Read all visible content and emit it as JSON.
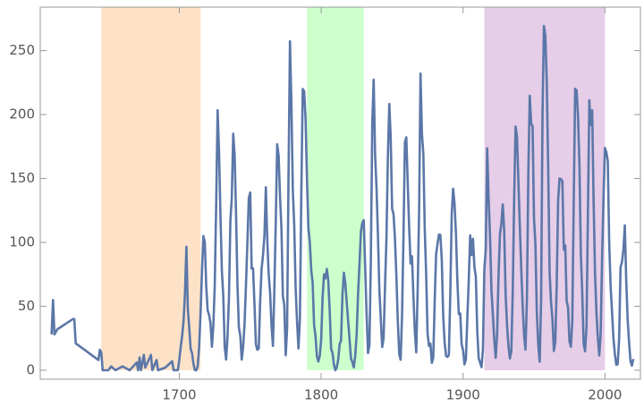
{
  "chart_data": {
    "type": "line",
    "xlim": [
      1602,
      2025
    ],
    "ylim": [
      -7,
      284
    ],
    "xticks": [
      1700,
      1800,
      1900,
      2000
    ],
    "yticks": [
      0,
      50,
      100,
      150,
      200,
      250
    ],
    "regions": [
      {
        "x": [
          1645,
          1715
        ],
        "color": "#fde2c8"
      },
      {
        "x": [
          1790,
          1830
        ],
        "color": "#ccffcc"
      },
      {
        "x": [
          1915,
          2000
        ],
        "color": "#e6cde8"
      }
    ],
    "x": [
      1610,
      1611,
      1612,
      1613,
      1614,
      1625,
      1626,
      1627,
      1643,
      1644,
      1645,
      1646,
      1650,
      1652,
      1655,
      1660,
      1665,
      1670,
      1671,
      1672,
      1673,
      1675,
      1676,
      1680,
      1681,
      1684,
      1685,
      1690,
      1695,
      1696,
      1699,
      1700,
      1701,
      1702,
      1703,
      1704,
      1705,
      1706,
      1707,
      1708,
      1709,
      1710,
      1711,
      1712,
      1713,
      1714,
      1715,
      1716,
      1717,
      1718,
      1719,
      1720,
      1721,
      1722,
      1723,
      1724,
      1725,
      1726,
      1727,
      1728,
      1729,
      1730,
      1731,
      1732,
      1733,
      1734,
      1735,
      1736,
      1737,
      1738,
      1739,
      1740,
      1741,
      1742,
      1743,
      1744,
      1745,
      1746,
      1747,
      1748,
      1749,
      1750,
      1751,
      1752,
      1753,
      1754,
      1755,
      1756,
      1757,
      1758,
      1759,
      1760,
      1761,
      1762,
      1763,
      1764,
      1765,
      1766,
      1767,
      1768,
      1769,
      1770,
      1771,
      1772,
      1773,
      1774,
      1775,
      1776,
      1777,
      1778,
      1779,
      1780,
      1781,
      1782,
      1783,
      1784,
      1785,
      1786,
      1787,
      1788,
      1789,
      1790,
      1791,
      1792,
      1793,
      1794,
      1795,
      1796,
      1797,
      1798,
      1799,
      1800,
      1801,
      1802,
      1803,
      1804,
      1805,
      1806,
      1807,
      1808,
      1809,
      1810,
      1811,
      1812,
      1813,
      1814,
      1815,
      1816,
      1817,
      1818,
      1819,
      1820,
      1821,
      1822,
      1823,
      1824,
      1825,
      1826,
      1827,
      1828,
      1829,
      1830,
      1831,
      1832,
      1833,
      1834,
      1835,
      1836,
      1837,
      1838,
      1839,
      1840,
      1841,
      1842,
      1843,
      1844,
      1845,
      1846,
      1847,
      1848,
      1849,
      1850,
      1851,
      1852,
      1853,
      1854,
      1855,
      1856,
      1857,
      1858,
      1859,
      1860,
      1861,
      1862,
      1863,
      1864,
      1865,
      1866,
      1867,
      1868,
      1869,
      1870,
      1871,
      1872,
      1873,
      1874,
      1875,
      1876,
      1877,
      1878,
      1879,
      1880,
      1881,
      1882,
      1883,
      1884,
      1885,
      1886,
      1887,
      1888,
      1889,
      1890,
      1891,
      1892,
      1893,
      1894,
      1895,
      1896,
      1897,
      1898,
      1899,
      1900,
      1901,
      1902,
      1903,
      1904,
      1905,
      1906,
      1907,
      1908,
      1909,
      1910,
      1911,
      1912,
      1913,
      1914,
      1915,
      1916,
      1917,
      1918,
      1919,
      1920,
      1921,
      1922,
      1923,
      1924,
      1925,
      1926,
      1927,
      1928,
      1929,
      1930,
      1931,
      1932,
      1933,
      1934,
      1935,
      1936,
      1937,
      1938,
      1939,
      1940,
      1941,
      1942,
      1943,
      1944,
      1945,
      1946,
      1947,
      1948,
      1949,
      1950,
      1951,
      1952,
      1953,
      1954,
      1955,
      1956,
      1957,
      1958,
      1959,
      1960,
      1961,
      1962,
      1963,
      1964,
      1965,
      1966,
      1967,
      1968,
      1969,
      1970,
      1971,
      1972,
      1973,
      1974,
      1975,
      1976,
      1977,
      1978,
      1979,
      1980,
      1981,
      1982,
      1983,
      1984,
      1985,
      1986,
      1987,
      1988,
      1989,
      1990,
      1991,
      1992,
      1993,
      1994,
      1995,
      1996,
      1997,
      1998,
      1999,
      2000,
      2001,
      2002,
      2003,
      2004,
      2005,
      2006,
      2007,
      2008,
      2009,
      2010,
      2011,
      2012,
      2013,
      2014,
      2015,
      2016,
      2017,
      2018,
      2019,
      2020
    ],
    "series": [
      {
        "color": "#5b77a8",
        "values": [
          28,
          55,
          28,
          30,
          32,
          40,
          40,
          21,
          8,
          16,
          14,
          0,
          0,
          3,
          0,
          3,
          0,
          6,
          0,
          10,
          0,
          12,
          2,
          12,
          0,
          8,
          0,
          2,
          7,
          0,
          0,
          8.3,
          18.3,
          26.7,
          38.3,
          60.0,
          96.7,
          48.3,
          33.3,
          16.7,
          13.3,
          5.0,
          0.0,
          0.0,
          3.3,
          18.3,
          45.0,
          78.3,
          105.0,
          100.0,
          65.0,
          46.7,
          43.3,
          36.7,
          18.3,
          35.0,
          66.7,
          130.0,
          203.3,
          171.7,
          121.7,
          78.3,
          58.3,
          18.3,
          8.3,
          26.7,
          56.7,
          116.7,
          135.0,
          185.0,
          168.3,
          121.7,
          66.7,
          33.3,
          26.7,
          8.3,
          18.3,
          36.7,
          66.7,
          100.0,
          134.8,
          139.0,
          79.5,
          79.7,
          51.2,
          20.3,
          16.0,
          17.0,
          54.0,
          79.3,
          90.0,
          104.8,
          143.2,
          102.0,
          75.2,
          60.7,
          34.8,
          19.0,
          63.0,
          116.3,
          176.8,
          168.0,
          136.0,
          110.8,
          58.0,
          51.0,
          11.7,
          33.0,
          154.2,
          257.3,
          209.8,
          141.3,
          113.5,
          64.2,
          38.0,
          17.0,
          40.2,
          138.2,
          220.0,
          218.2,
          196.8,
          149.8,
          111.0,
          100.0,
          78.2,
          68.3,
          35.5,
          26.7,
          10.7,
          6.8,
          11.3,
          24.2,
          56.7,
          75.0,
          71.8,
          79.2,
          70.3,
          46.8,
          16.8,
          13.5,
          4.2,
          0.0,
          2.3,
          8.3,
          20.3,
          23.2,
          59.0,
          76.3,
          68.3,
          52.9,
          38.5,
          24.2,
          9.2,
          6.3,
          2.2,
          11.4,
          28.2,
          59.9,
          83.0,
          108.5,
          115.2,
          117.4,
          80.8,
          44.3,
          13.4,
          19.5,
          85.8,
          192.7,
          227.3,
          168.7,
          143.0,
          105.5,
          63.3,
          40.3,
          18.1,
          25.1,
          65.8,
          102.7,
          166.3,
          208.3,
          182.5,
          126.3,
          122.0,
          102.7,
          74.1,
          39.0,
          12.7,
          8.2,
          43.4,
          104.4,
          178.3,
          182.2,
          146.6,
          112.1,
          83.5,
          89.2,
          57.8,
          30.7,
          13.9,
          62.8,
          123.6,
          232.0,
          185.3,
          169.2,
          110.1,
          74.5,
          28.3,
          18.9,
          20.7,
          5.7,
          10.0,
          53.7,
          90.5,
          99.0,
          106.1,
          105.8,
          86.3,
          42.4,
          21.8,
          11.2,
          10.4,
          11.8,
          59.5,
          121.7,
          142.0,
          130.0,
          106.6,
          69.4,
          43.8,
          44.4,
          20.2,
          15.7,
          4.6,
          8.5,
          40.8,
          70.1,
          105.5,
          90.1,
          102.8,
          80.9,
          73.2,
          30.9,
          9.5,
          6.0,
          2.4,
          16.1,
          79.0,
          95.0,
          173.6,
          134.6,
          105.7,
          62.7,
          43.5,
          23.7,
          9.7,
          27.9,
          74.0,
          106.5,
          114.7,
          129.7,
          108.2,
          59.4,
          35.1,
          18.6,
          9.2,
          14.6,
          60.2,
          132.8,
          190.6,
          182.6,
          148.0,
          113.0,
          79.2,
          50.8,
          27.1,
          16.1,
          55.3,
          154.3,
          214.7,
          193.0,
          190.7,
          118.9,
          98.3,
          45.0,
          20.1,
          6.6,
          54.2,
          200.7,
          269.3,
          261.7,
          225.1,
          159.0,
          76.4,
          53.4,
          39.9,
          15.0,
          22.0,
          66.8,
          132.9,
          150.0,
          149.4,
          148.0,
          94.4,
          97.6,
          54.1,
          49.2,
          22.5,
          18.4,
          39.3,
          131.0,
          220.1,
          218.9,
          198.9,
          162.4,
          91.0,
          60.5,
          20.6,
          14.8,
          33.9,
          123.0,
          211.1,
          191.8,
          203.3,
          133.0,
          76.1,
          44.9,
          25.1,
          11.6,
          28.9,
          88.3,
          136.3,
          173.9,
          170.4,
          163.6,
          99.3,
          65.3,
          45.8,
          24.7,
          12.6,
          4.2,
          4.8,
          24.9,
          80.8,
          84.5,
          94.0,
          113.3,
          69.8,
          39.8,
          21.7,
          7.0,
          3.6,
          8.8
        ]
      }
    ]
  }
}
